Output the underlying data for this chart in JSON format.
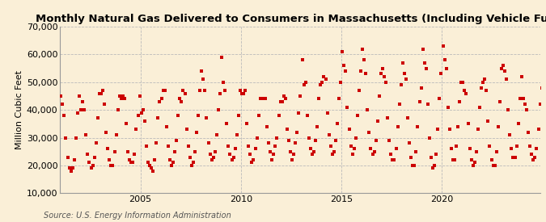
{
  "title": "Monthly Natural Gas Delivered to Consumers in Massachusetts (Including Vehicle Fuel)",
  "ylabel": "Million Cubic Feet",
  "source": "Source: U.S. Energy Information Administration",
  "background_color": "#faefd7",
  "plot_bg_color": "#faefd7",
  "marker_color": "#cc0000",
  "marker_size": 9,
  "ylim": [
    10000,
    70000
  ],
  "yticks": [
    10000,
    20000,
    30000,
    40000,
    50000,
    60000,
    70000
  ],
  "ytick_labels": [
    "10,000",
    "20,000",
    "30,000",
    "40,000",
    "50,000",
    "60,000",
    "70,000"
  ],
  "xticks": [
    2005,
    2010,
    2015,
    2020
  ],
  "xlim": [
    2001.0,
    2024.9
  ],
  "title_fontsize": 9.5,
  "axis_fontsize": 8,
  "source_fontsize": 7,
  "monthly_data": [
    45000,
    42000,
    38000,
    30000,
    23000,
    19000,
    18000,
    19000,
    22000,
    30000,
    39000,
    45000,
    40000,
    43000,
    40000,
    31000,
    24000,
    21000,
    19000,
    20000,
    23000,
    28000,
    37000,
    46000,
    46000,
    47000,
    42000,
    32000,
    26000,
    22000,
    20000,
    20000,
    25000,
    31000,
    40000,
    45000,
    44000,
    45000,
    44000,
    35000,
    25000,
    22000,
    21000,
    21000,
    24000,
    33000,
    38000,
    45000,
    39000,
    40000,
    36000,
    27000,
    21000,
    20000,
    19000,
    18000,
    22000,
    28000,
    37000,
    43000,
    44000,
    47000,
    47000,
    34000,
    27000,
    22000,
    20000,
    21000,
    25000,
    29000,
    38000,
    44000,
    43000,
    47000,
    46000,
    33000,
    27000,
    23000,
    20000,
    21000,
    25000,
    32000,
    38000,
    47000,
    54000,
    51000,
    47000,
    37000,
    28000,
    24000,
    22000,
    23000,
    25000,
    31000,
    40000,
    46000,
    59000,
    50000,
    47000,
    35000,
    27000,
    24000,
    22000,
    23000,
    26000,
    31000,
    38000,
    47000,
    46000,
    46000,
    47000,
    35000,
    27000,
    24000,
    21000,
    22000,
    26000,
    30000,
    38000,
    44000,
    44000,
    44000,
    44000,
    34000,
    28000,
    25000,
    22000,
    24000,
    27000,
    30000,
    38000,
    43000,
    43000,
    45000,
    44000,
    33000,
    29000,
    25000,
    22000,
    24000,
    28000,
    32000,
    39000,
    45000,
    58000,
    49000,
    50000,
    38000,
    30000,
    26000,
    24000,
    25000,
    29000,
    34000,
    44000,
    49000,
    50000,
    52000,
    51000,
    39000,
    31000,
    27000,
    24000,
    25000,
    29000,
    35000,
    44000,
    50000,
    61000,
    56000,
    54000,
    41000,
    33000,
    27000,
    24000,
    26000,
    30000,
    38000,
    47000,
    54000,
    62000,
    58000,
    53000,
    40000,
    32000,
    26000,
    24000,
    25000,
    29000,
    36000,
    45000,
    53000,
    55000,
    52000,
    50000,
    37000,
    29000,
    24000,
    22000,
    22000,
    26000,
    34000,
    42000,
    49000,
    57000,
    53000,
    51000,
    37000,
    28000,
    23000,
    20000,
    20000,
    25000,
    34000,
    43000,
    48000,
    62000,
    57000,
    55000,
    42000,
    30000,
    23000,
    19000,
    20000,
    24000,
    33000,
    44000,
    53000,
    63000,
    58000,
    55000,
    41000,
    33000,
    26000,
    22000,
    22000,
    27000,
    34000,
    43000,
    50000,
    50000,
    47000,
    46000,
    35000,
    26000,
    22000,
    20000,
    21000,
    25000,
    33000,
    41000,
    48000,
    50000,
    51000,
    47000,
    36000,
    27000,
    22000,
    20000,
    20000,
    25000,
    34000,
    43000,
    55000,
    56000,
    54000,
    51000,
    40000,
    31000,
    26000,
    23000,
    23000,
    27000,
    35000,
    44000,
    52000,
    44000,
    42000,
    40000,
    32000,
    27000,
    24000,
    22000,
    23000,
    26000,
    33000,
    42000,
    48000
  ]
}
